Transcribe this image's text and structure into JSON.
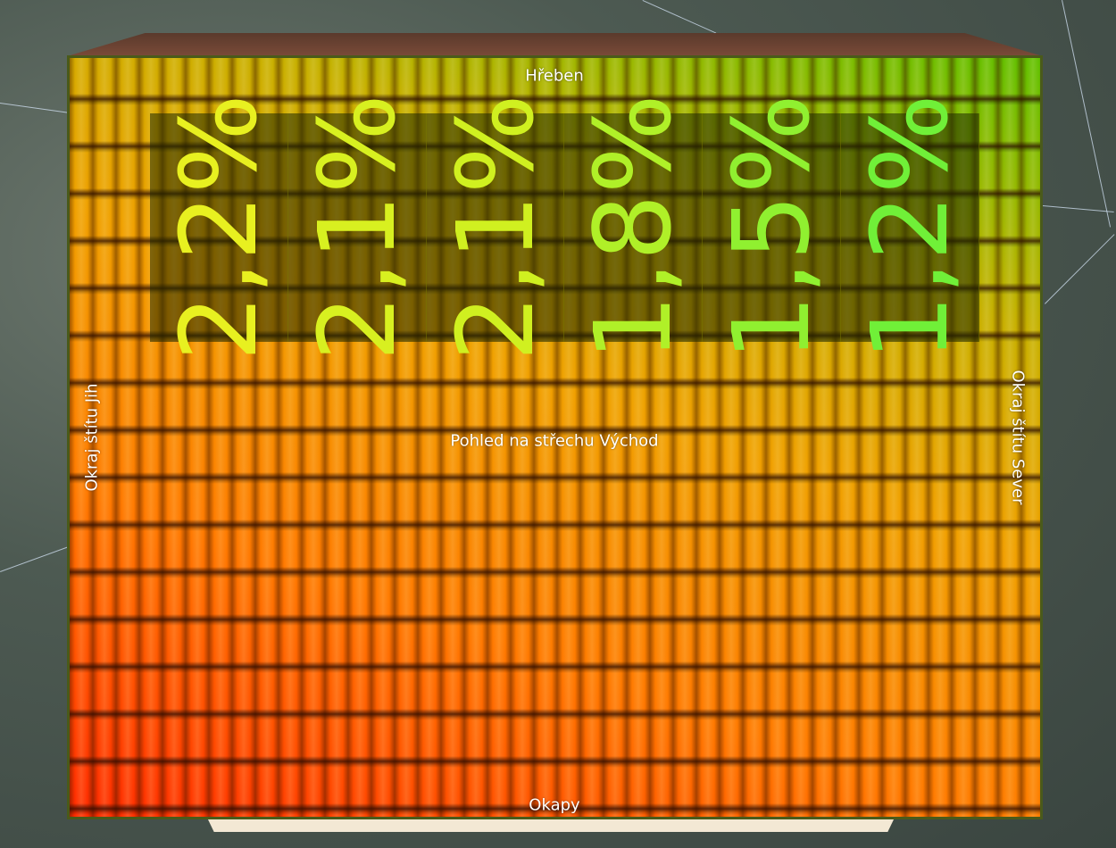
{
  "roof": {
    "top_label": "Hřeben",
    "bottom_label": "Okapy",
    "left_label": "Okraj štítu Jih",
    "right_label": "Okraj štítu Sever",
    "center_label": "Pohled na střechu Východ",
    "panels": [
      "2,2%",
      "2,1%",
      "2,1%",
      "1,8%",
      "1,5%",
      "1,2%"
    ]
  }
}
